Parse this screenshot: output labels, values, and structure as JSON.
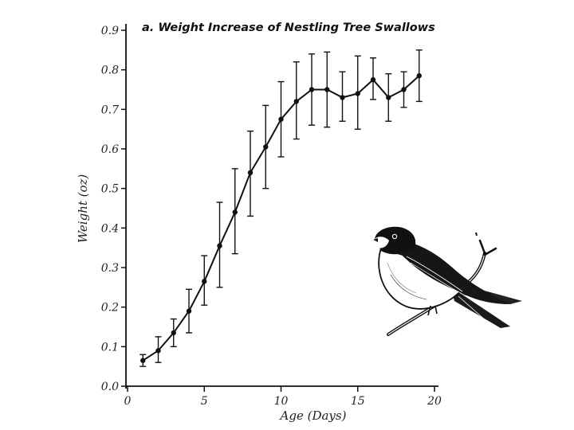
{
  "chart_data": {
    "type": "line",
    "title": "a. Weight Increase of Nestling Tree Swallows",
    "xlabel": "Age (Days)",
    "ylabel": "Weight (oz)",
    "xlim": [
      0,
      20
    ],
    "ylim": [
      0.0,
      0.9
    ],
    "x_ticks": [
      0,
      5,
      10,
      15,
      20
    ],
    "y_ticks": [
      0.0,
      0.1,
      0.2,
      0.3,
      0.4,
      0.5,
      0.6,
      0.7,
      0.8,
      0.9
    ],
    "x_tick_labels": [
      "0",
      "5",
      "10",
      "15",
      "20"
    ],
    "y_tick_labels": [
      "0.0",
      "0.1",
      "0.2",
      "0.3",
      "0.4",
      "0.5",
      "0.6",
      "0.7",
      "0.8",
      "0.9"
    ],
    "grid": false,
    "series": [
      {
        "x": [
          1,
          2,
          3,
          4,
          5,
          6,
          7,
          8,
          9,
          10,
          11,
          12,
          13,
          14,
          15,
          16,
          17,
          18,
          19
        ],
        "y": [
          0.065,
          0.09,
          0.135,
          0.19,
          0.265,
          0.355,
          0.44,
          0.54,
          0.605,
          0.675,
          0.72,
          0.75,
          0.75,
          0.73,
          0.74,
          0.775,
          0.73,
          0.75,
          0.785
        ],
        "low": [
          0.05,
          0.06,
          0.1,
          0.135,
          0.205,
          0.25,
          0.335,
          0.43,
          0.5,
          0.58,
          0.625,
          0.66,
          0.655,
          0.67,
          0.65,
          0.725,
          0.67,
          0.705,
          0.72
        ],
        "high": [
          0.08,
          0.125,
          0.17,
          0.245,
          0.33,
          0.465,
          0.55,
          0.645,
          0.71,
          0.77,
          0.82,
          0.84,
          0.845,
          0.795,
          0.835,
          0.83,
          0.79,
          0.795,
          0.85
        ]
      }
    ]
  },
  "illustration": {
    "icon": "tree-swallow-perched-on-twig-icon"
  }
}
